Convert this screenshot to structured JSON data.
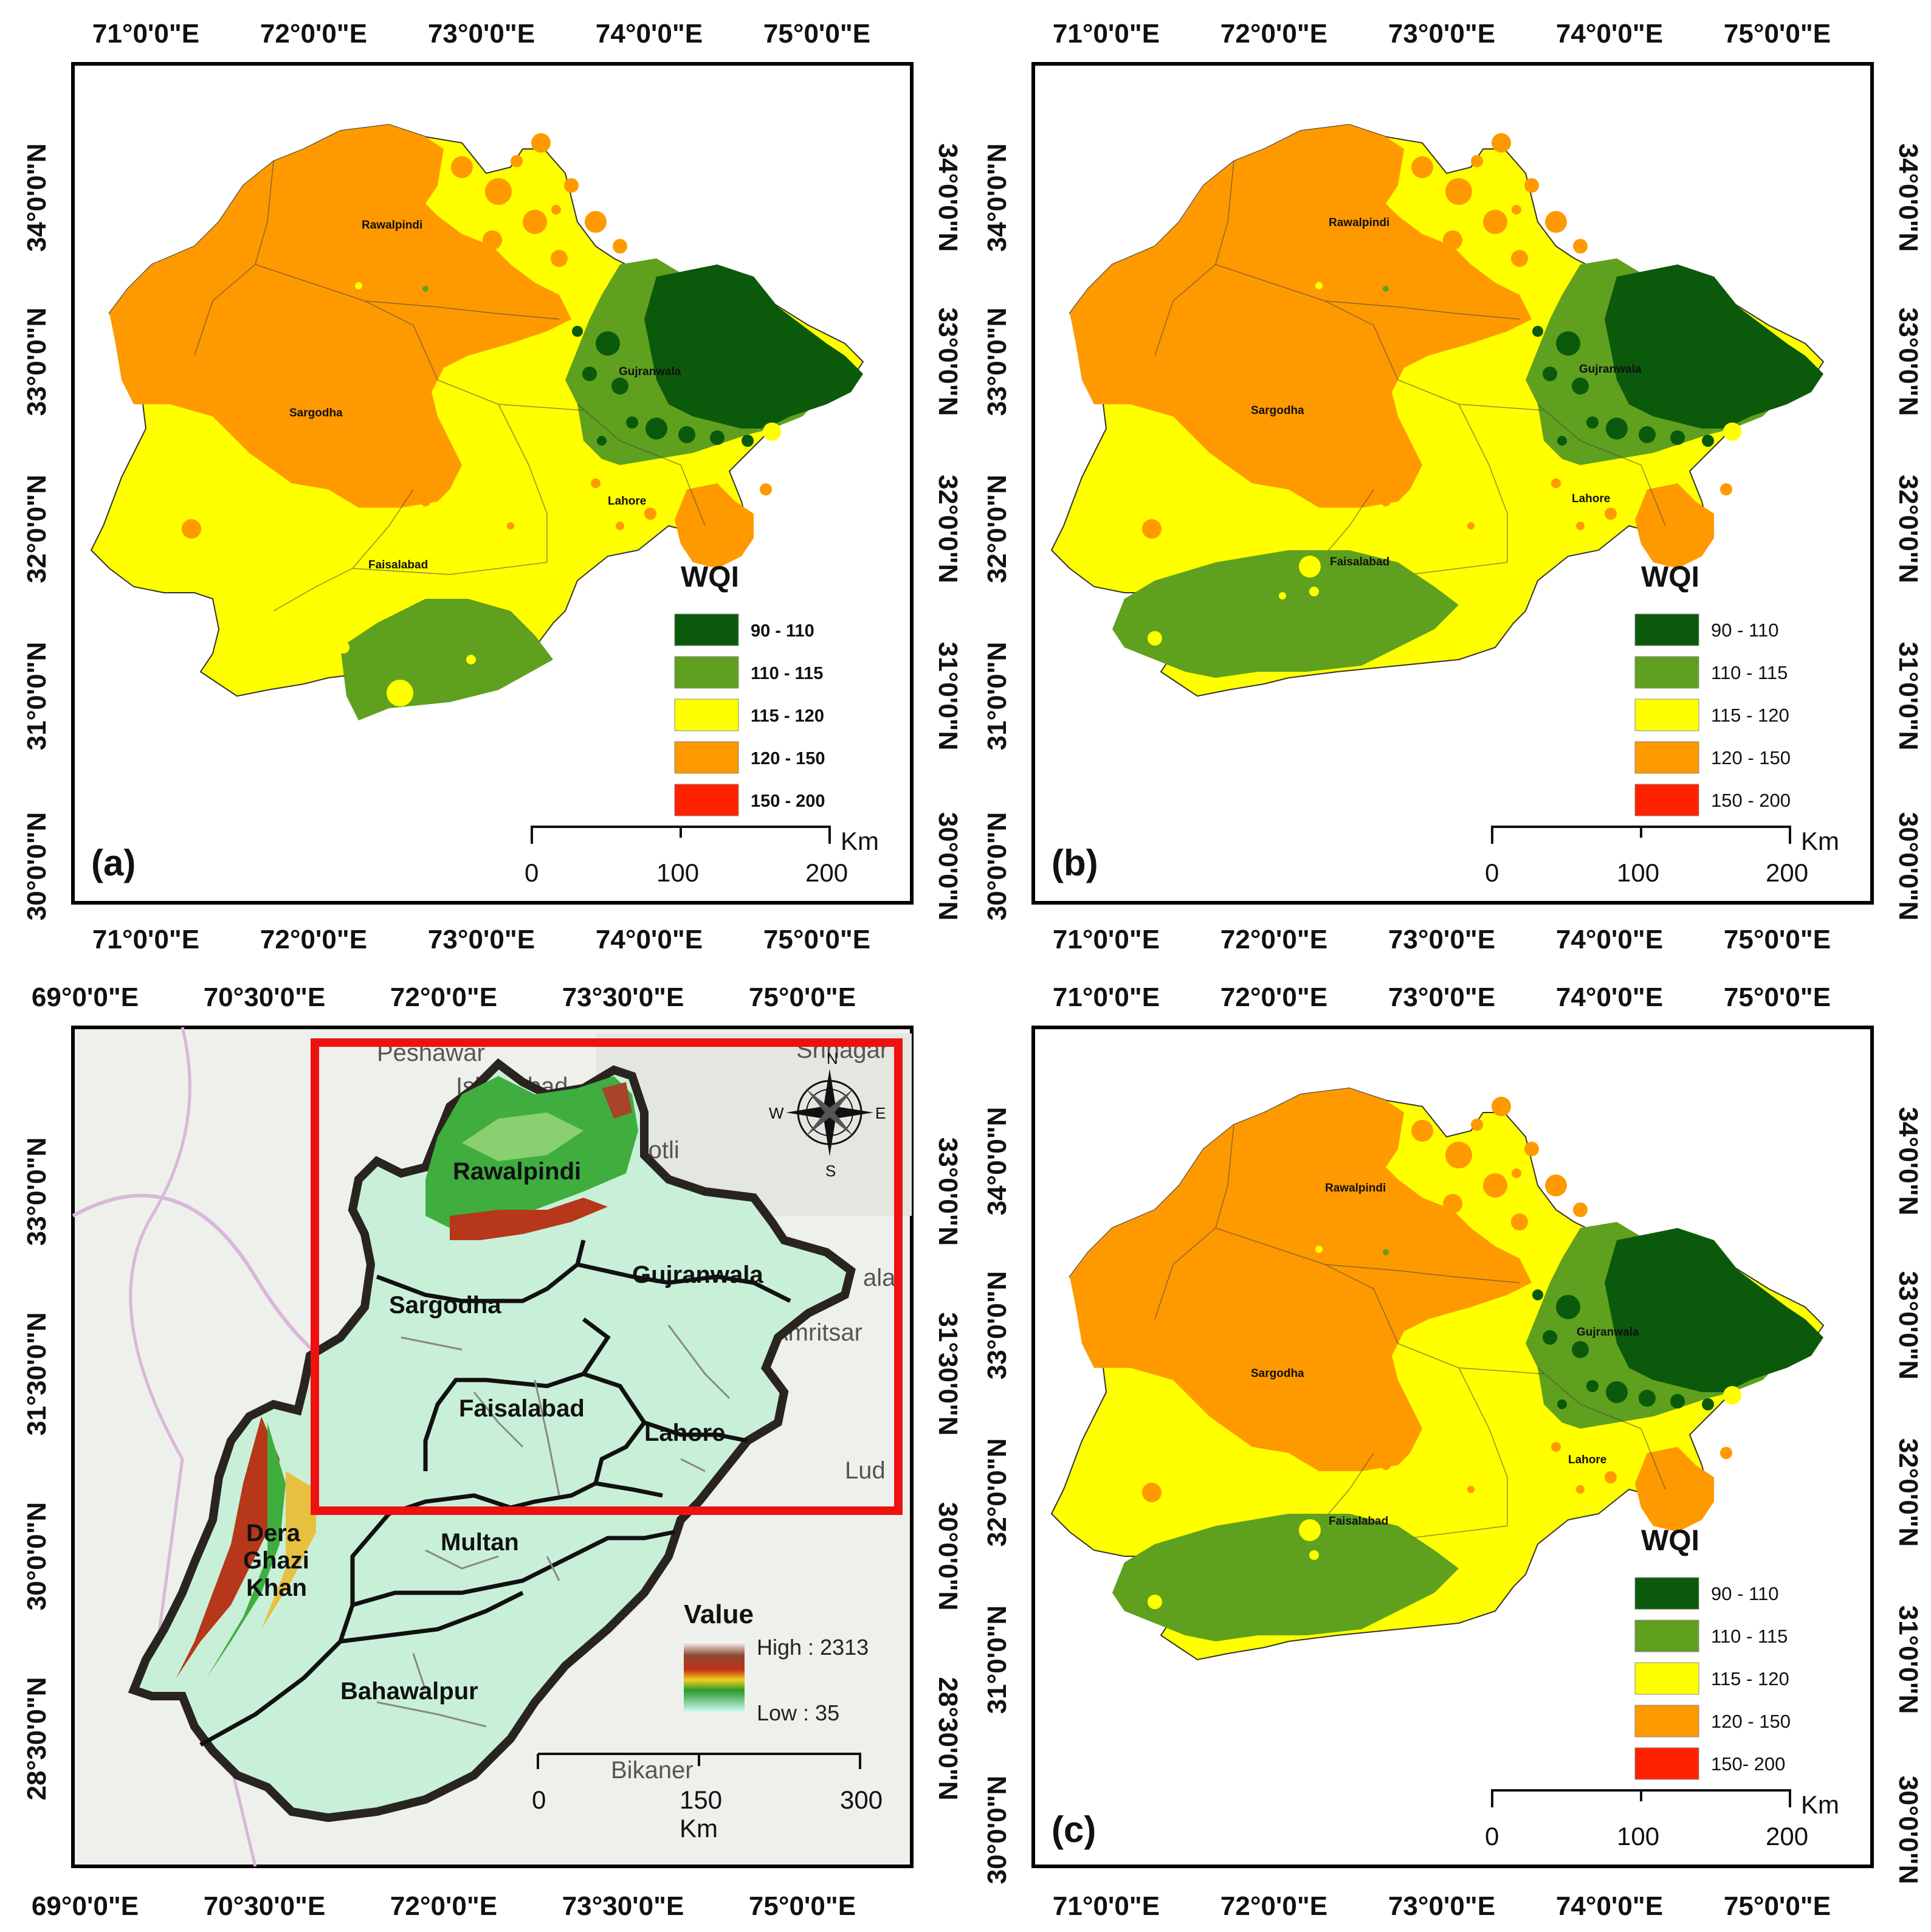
{
  "legend": {
    "title": "WQI",
    "classes": [
      {
        "label": "90 - 110",
        "color": "#0b5a0b"
      },
      {
        "label": "110 - 115",
        "color": "#5fa01e"
      },
      {
        "label": "115 - 120",
        "color": "#ffff00"
      },
      {
        "label": "120 - 150",
        "color": "#ff9900"
      },
      {
        "label": "150 - 200",
        "color": "#ff2200"
      }
    ],
    "c_last_label": "150- 200"
  },
  "wqi_axes": {
    "lon": [
      "71°0'0\"E",
      "72°0'0\"E",
      "73°0'0\"E",
      "74°0'0\"E",
      "75°0'0\"E"
    ],
    "lat": [
      "34°0'0\"N",
      "33°0'0\"N",
      "32°0'0\"N",
      "31°0'0\"N",
      "30°0'0\"N"
    ]
  },
  "overview_axes": {
    "lon": [
      "69°0'0\"E",
      "70°30'0\"E",
      "72°0'0\"E",
      "73°30'0\"E",
      "75°0'0\"E"
    ],
    "lat": [
      "33°0'0\"N",
      "31°30'0\"N",
      "30°0'0\"N",
      "28°30'0\"N"
    ]
  },
  "scale_wqi": {
    "ticks": [
      "0",
      "100",
      "200"
    ],
    "unit": "Km"
  },
  "scale_overview": {
    "ticks": [
      "0",
      "150",
      "300"
    ],
    "unit": "Km"
  },
  "panels": {
    "a": "(a)",
    "b": "(b)",
    "c": "(c)"
  },
  "cities": {
    "rawalpindi": "Rawalpindi",
    "sargodha": "Sargodha",
    "gujranwala": "Gujranwala",
    "lahore": "Lahore",
    "faisalabad": "Faisalabad"
  },
  "overview": {
    "divisions": {
      "rawalpindi": "Rawalpindi",
      "sargodha": "Sargodha",
      "gujranwala": "Gujranwala",
      "faisalabad": "Faisalabad",
      "lahore": "Lahore",
      "multan": "Multan",
      "dg_khan_1": "Dera",
      "dg_khan_2": "Ghazi",
      "dg_khan_3": "Khan",
      "bahawalpur": "Bahawalpur"
    },
    "basemap_labels": {
      "peshawar": "Peshawar",
      "islamabad": "Islamabad",
      "kotli": "Kotli",
      "srinagar": "Srinagar",
      "amritsar": "Amritsar",
      "ludhiana": "Lud",
      "bikaner": "Bikaner",
      "jalandhar": "ala"
    },
    "elevation_legend": {
      "title": "Value",
      "high": "High : 2313",
      "low": "Low : 35"
    },
    "compass": {
      "n": "N",
      "s": "S",
      "e": "E",
      "w": "W"
    }
  }
}
